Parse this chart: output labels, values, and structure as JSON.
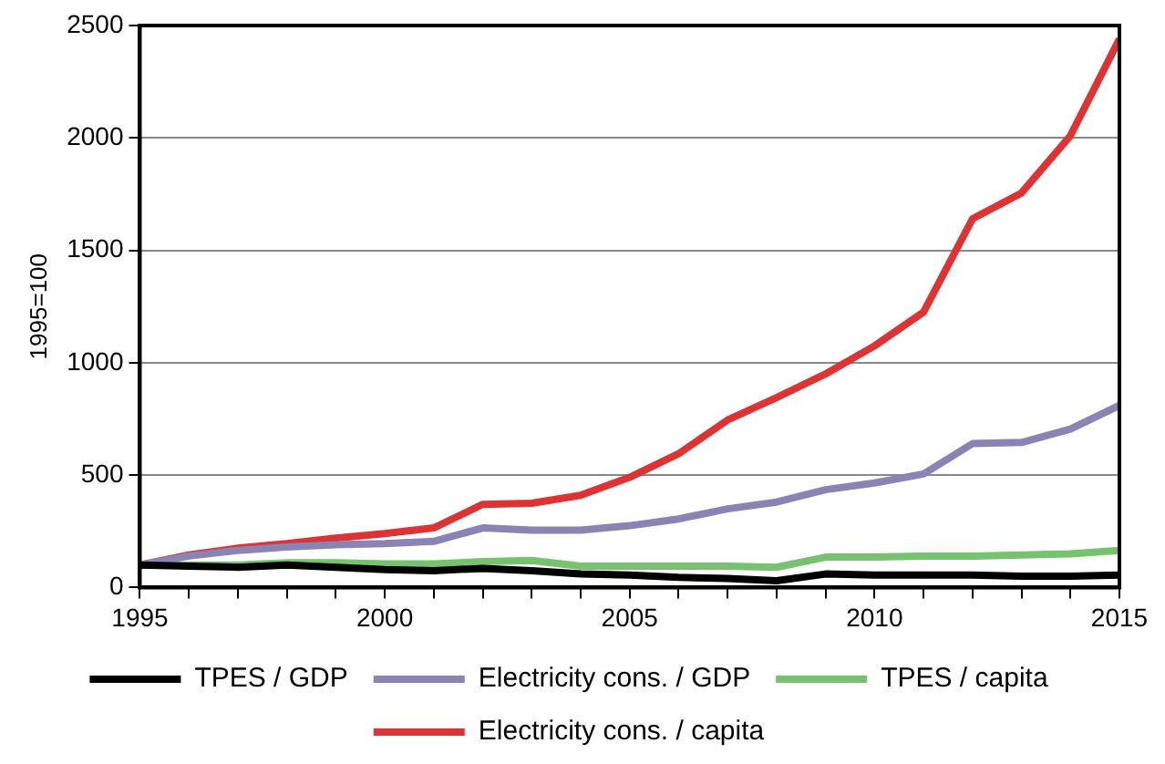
{
  "chart_data": {
    "type": "line",
    "ylabel": "1995=100",
    "x": [
      1995,
      1996,
      1997,
      1998,
      1999,
      2000,
      2001,
      2002,
      2003,
      2004,
      2005,
      2006,
      2007,
      2008,
      2009,
      2010,
      2011,
      2012,
      2013,
      2014,
      2015
    ],
    "series": [
      {
        "name": "TPES / GDP",
        "color": "#000000",
        "values": [
          100,
          95,
          90,
          100,
          90,
          80,
          75,
          85,
          75,
          60,
          55,
          45,
          40,
          30,
          60,
          55,
          55,
          55,
          50,
          50,
          55
        ]
      },
      {
        "name": "Electricity cons. / GDP",
        "color": "#8a84b5",
        "values": [
          100,
          140,
          165,
          180,
          190,
          195,
          205,
          265,
          255,
          255,
          275,
          305,
          350,
          380,
          435,
          465,
          505,
          640,
          645,
          705,
          810
        ]
      },
      {
        "name": "TPES / capita",
        "color": "#77c26e",
        "values": [
          100,
          100,
          100,
          110,
          110,
          105,
          105,
          115,
          120,
          95,
          95,
          95,
          95,
          90,
          135,
          135,
          140,
          140,
          145,
          150,
          165
        ]
      },
      {
        "name": "Electricity cons. / capita",
        "color": "#dd3333",
        "values": [
          100,
          145,
          175,
          195,
          220,
          240,
          265,
          370,
          375,
          410,
          490,
          595,
          745,
          845,
          950,
          1075,
          1225,
          1640,
          1755,
          2010,
          2440
        ]
      }
    ],
    "xlim": [
      1995,
      2015
    ],
    "xticks": [
      1995,
      {
        "value": 1996,
        "label": null
      },
      {
        "value": 1997,
        "label": null
      },
      {
        "value": 1998,
        "label": null
      },
      {
        "value": 1999,
        "label": null
      },
      2000,
      {
        "value": 2001,
        "label": null
      },
      {
        "value": 2002,
        "label": null
      },
      {
        "value": 2003,
        "label": null
      },
      {
        "value": 2004,
        "label": null
      },
      2005,
      {
        "value": 2006,
        "label": null
      },
      {
        "value": 2007,
        "label": null
      },
      {
        "value": 2008,
        "label": null
      },
      {
        "value": 2009,
        "label": null
      },
      2010,
      {
        "value": 2011,
        "label": null
      },
      {
        "value": 2012,
        "label": null
      },
      {
        "value": 2013,
        "label": null
      },
      {
        "value": 2014,
        "label": null
      },
      2015
    ],
    "ylim": [
      0,
      2500
    ],
    "yticks": [
      0,
      500,
      1000,
      1500,
      2000,
      2500
    ],
    "grid": "y",
    "legend": "bottom",
    "marker": "none",
    "line_style": "solid"
  }
}
